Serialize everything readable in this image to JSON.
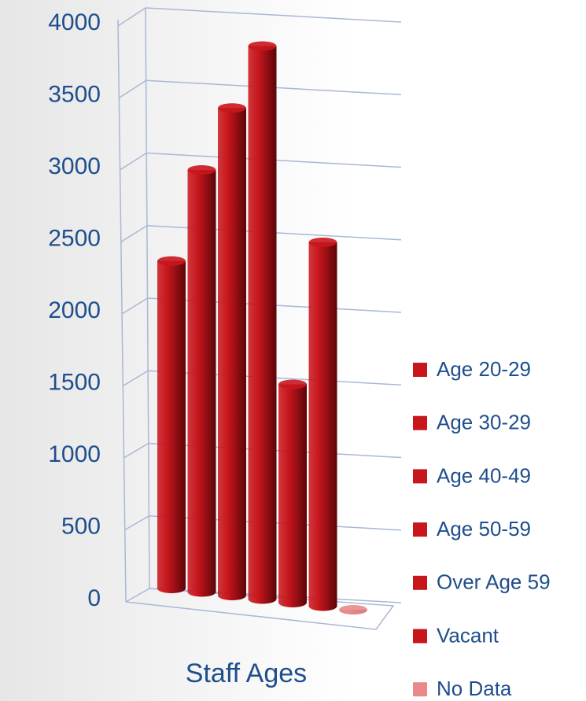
{
  "chart_data": {
    "type": "bar3d",
    "categories": [
      "Staff Ages"
    ],
    "series": [
      {
        "name": "Age 20-29",
        "color": "#c8161d",
        "values": [
          2250
        ]
      },
      {
        "name": "Age 30-29",
        "color": "#c8161d",
        "values": [
          2900
        ]
      },
      {
        "name": "Age 40-49",
        "color": "#c8161d",
        "values": [
          3350
        ]
      },
      {
        "name": "Age 50-59",
        "color": "#c8161d",
        "values": [
          3800
        ]
      },
      {
        "name": "Over Age 59",
        "color": "#c8161d",
        "values": [
          1500
        ]
      },
      {
        "name": "Vacant",
        "color": "#c8161d",
        "values": [
          2500
        ]
      },
      {
        "name": "No Data",
        "color": "#e88a8c",
        "values": [
          0
        ]
      }
    ],
    "ylim": [
      0,
      4000
    ],
    "yticks": [
      0,
      500,
      1000,
      1500,
      2000,
      2500,
      3000,
      3500,
      4000
    ],
    "grid": true,
    "legend": "right"
  }
}
